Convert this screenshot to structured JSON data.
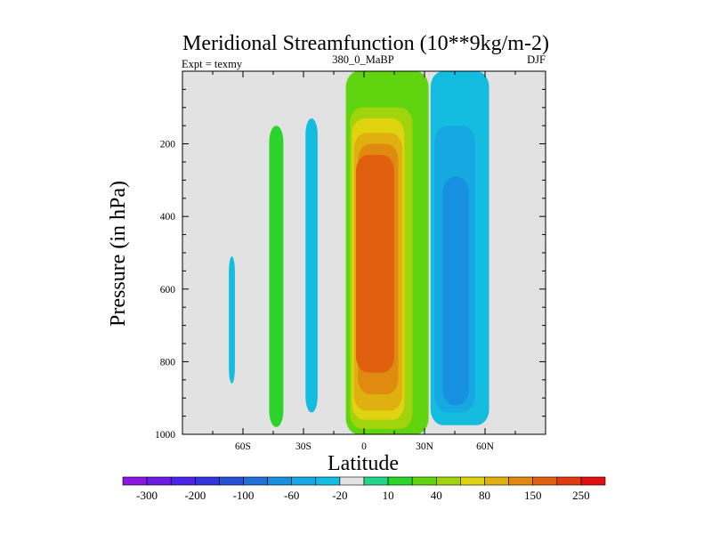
{
  "chart_data": {
    "type": "heatmap",
    "title": "Meridional Streamfunction (10**9kg/m-2)",
    "subtitle_left": "Expt = texmy",
    "subtitle_center": "380_0_MaBP",
    "subtitle_right": "DJF",
    "xlabel": "Latitude",
    "ylabel": "Pressure (in hPa)",
    "xlim": [
      -90,
      90
    ],
    "ylim": [
      1000,
      0
    ],
    "x_ticks": [
      {
        "value": -60,
        "label": "60S"
      },
      {
        "value": -30,
        "label": "30S"
      },
      {
        "value": 0,
        "label": "0"
      },
      {
        "value": 30,
        "label": "30N"
      },
      {
        "value": 60,
        "label": "60N"
      }
    ],
    "y_ticks": [
      {
        "value": 200,
        "label": "200"
      },
      {
        "value": 400,
        "label": "400"
      },
      {
        "value": 600,
        "label": "600"
      },
      {
        "value": 800,
        "label": "800"
      },
      {
        "value": 1000,
        "label": "1000"
      }
    ],
    "colorbar": {
      "levels": [
        -300,
        -250,
        -200,
        -150,
        -100,
        -80,
        -60,
        -40,
        -20,
        -10,
        10,
        20,
        40,
        60,
        80,
        100,
        150,
        200,
        250,
        300
      ],
      "labels": [
        "-300",
        "-200",
        "-100",
        "-60",
        "-20",
        "10",
        "40",
        "80",
        "150",
        "250"
      ],
      "colors": [
        "#8a17e0",
        "#6a1be6",
        "#4a24e8",
        "#3434dc",
        "#2a50d8",
        "#2070da",
        "#1890e0",
        "#16a8e0",
        "#14bce0",
        "#e2e2e2",
        "#22d488",
        "#2ad42a",
        "#60d40e",
        "#a2d40e",
        "#e0d410",
        "#e0b010",
        "#e08a10",
        "#e06010",
        "#e03a10",
        "#e01010"
      ]
    },
    "background_color": "#e2e2e2",
    "contour_regions": [
      {
        "name": "tropical-core",
        "value_class": 40,
        "lat": [
          -9,
          32
        ],
        "pres": [
          0,
          1000
        ]
      },
      {
        "name": "tropical-core",
        "value_class": 60,
        "lat": [
          -7,
          24
        ],
        "pres": [
          100,
          985
        ]
      },
      {
        "name": "tropical-core",
        "value_class": 80,
        "lat": [
          -6,
          20
        ],
        "pres": [
          130,
          960
        ]
      },
      {
        "name": "tropical-core",
        "value_class": 100,
        "lat": [
          -5,
          19
        ],
        "pres": [
          170,
          935
        ]
      },
      {
        "name": "tropical-core",
        "value_class": 150,
        "lat": [
          -3,
          17
        ],
        "pres": [
          200,
          890
        ]
      },
      {
        "name": "tropical-core",
        "value_class": 200,
        "lat": [
          -4,
          15
        ],
        "pres": [
          230,
          830
        ]
      },
      {
        "name": "southern-cell",
        "value_class": -20,
        "lat": [
          -29,
          -23
        ],
        "pres": [
          130,
          940
        ]
      },
      {
        "name": "southern-positive",
        "value_class": 20,
        "lat": [
          -47,
          -40
        ],
        "pres": [
          150,
          980
        ]
      },
      {
        "name": "southern-negative",
        "value_class": -20,
        "lat": [
          -67,
          -64
        ],
        "pres": [
          510,
          860
        ]
      },
      {
        "name": "northern-cell",
        "value_class": -20,
        "lat": [
          33,
          62
        ],
        "pres": [
          0,
          975
        ]
      },
      {
        "name": "northern-cell",
        "value_class": -40,
        "lat": [
          35,
          55
        ],
        "pres": [
          150,
          940
        ]
      },
      {
        "name": "northern-cell",
        "value_class": -60,
        "lat": [
          39,
          52
        ],
        "pres": [
          290,
          920
        ]
      }
    ]
  }
}
